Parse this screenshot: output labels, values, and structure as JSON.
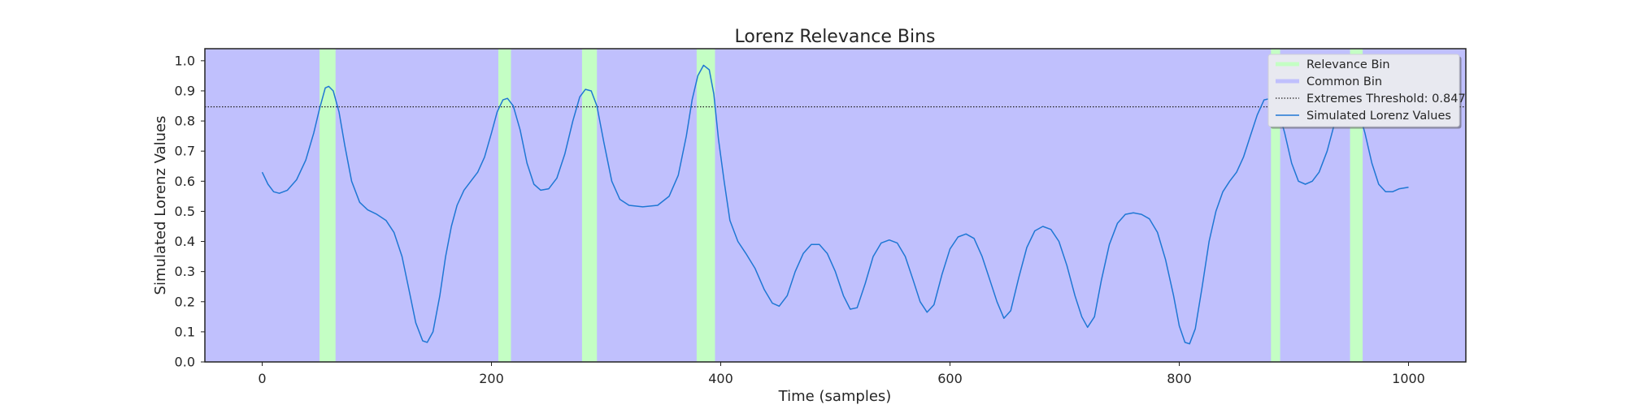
{
  "chart_data": {
    "type": "line",
    "title": "Lorenz Relevance Bins",
    "xlabel": "Time (samples)",
    "ylabel": "Simulated Lorenz Values",
    "xlim": [
      -50,
      1050
    ],
    "ylim": [
      0.0,
      1.04
    ],
    "x_ticks": [
      0,
      200,
      400,
      600,
      800,
      1000
    ],
    "y_ticks": [
      0.0,
      0.1,
      0.2,
      0.3,
      0.4,
      0.5,
      0.6,
      0.7,
      0.8,
      0.9,
      1.0
    ],
    "grid": false,
    "legend_position": "top-right",
    "colors": {
      "common_bin": "#c0c0fd",
      "relevance_bin": "#c4fec4",
      "line": "#1f77d4",
      "threshold": "#222222",
      "frame": "#222222",
      "legend_bg": "#e8e9f0"
    },
    "threshold": 0.847,
    "relevance_bins": [
      [
        50,
        64
      ],
      [
        206,
        217
      ],
      [
        279,
        292
      ],
      [
        379,
        395
      ],
      [
        880,
        888
      ],
      [
        949,
        960
      ]
    ],
    "legend": [
      {
        "label": "Relevance Bin",
        "kind": "relevance-bin"
      },
      {
        "label": "Common Bin",
        "kind": "common-bin"
      },
      {
        "label": "Extremes Threshold: 0.847",
        "kind": "threshold"
      },
      {
        "label": "Simulated Lorenz Values",
        "kind": "line"
      }
    ],
    "series": [
      {
        "name": "Simulated Lorenz Values",
        "points": [
          [
            0,
            0.63
          ],
          [
            5,
            0.59
          ],
          [
            10,
            0.565
          ],
          [
            15,
            0.56
          ],
          [
            22,
            0.57
          ],
          [
            30,
            0.605
          ],
          [
            38,
            0.67
          ],
          [
            45,
            0.76
          ],
          [
            50,
            0.84
          ],
          [
            55,
            0.91
          ],
          [
            58,
            0.915
          ],
          [
            62,
            0.9
          ],
          [
            67,
            0.83
          ],
          [
            72,
            0.72
          ],
          [
            78,
            0.6
          ],
          [
            85,
            0.53
          ],
          [
            92,
            0.505
          ],
          [
            100,
            0.49
          ],
          [
            108,
            0.47
          ],
          [
            115,
            0.43
          ],
          [
            122,
            0.35
          ],
          [
            128,
            0.24
          ],
          [
            134,
            0.13
          ],
          [
            140,
            0.07
          ],
          [
            144,
            0.065
          ],
          [
            149,
            0.1
          ],
          [
            155,
            0.22
          ],
          [
            160,
            0.35
          ],
          [
            165,
            0.45
          ],
          [
            170,
            0.52
          ],
          [
            176,
            0.57
          ],
          [
            182,
            0.6
          ],
          [
            188,
            0.63
          ],
          [
            194,
            0.68
          ],
          [
            200,
            0.76
          ],
          [
            205,
            0.83
          ],
          [
            210,
            0.87
          ],
          [
            214,
            0.875
          ],
          [
            219,
            0.85
          ],
          [
            225,
            0.77
          ],
          [
            231,
            0.66
          ],
          [
            237,
            0.59
          ],
          [
            243,
            0.57
          ],
          [
            250,
            0.575
          ],
          [
            257,
            0.61
          ],
          [
            264,
            0.69
          ],
          [
            271,
            0.8
          ],
          [
            277,
            0.88
          ],
          [
            282,
            0.905
          ],
          [
            287,
            0.9
          ],
          [
            292,
            0.85
          ],
          [
            298,
            0.73
          ],
          [
            305,
            0.6
          ],
          [
            312,
            0.54
          ],
          [
            320,
            0.52
          ],
          [
            332,
            0.515
          ],
          [
            345,
            0.52
          ],
          [
            355,
            0.55
          ],
          [
            363,
            0.62
          ],
          [
            370,
            0.75
          ],
          [
            375,
            0.87
          ],
          [
            380,
            0.95
          ],
          [
            385,
            0.985
          ],
          [
            390,
            0.97
          ],
          [
            394,
            0.89
          ],
          [
            398,
            0.74
          ],
          [
            403,
            0.6
          ],
          [
            408,
            0.47
          ],
          [
            415,
            0.4
          ],
          [
            422,
            0.36
          ],
          [
            430,
            0.31
          ],
          [
            438,
            0.24
          ],
          [
            445,
            0.195
          ],
          [
            451,
            0.185
          ],
          [
            458,
            0.22
          ],
          [
            465,
            0.3
          ],
          [
            472,
            0.36
          ],
          [
            479,
            0.39
          ],
          [
            486,
            0.39
          ],
          [
            493,
            0.36
          ],
          [
            500,
            0.3
          ],
          [
            507,
            0.22
          ],
          [
            513,
            0.175
          ],
          [
            519,
            0.18
          ],
          [
            526,
            0.26
          ],
          [
            533,
            0.35
          ],
          [
            540,
            0.395
          ],
          [
            547,
            0.405
          ],
          [
            554,
            0.395
          ],
          [
            561,
            0.35
          ],
          [
            568,
            0.27
          ],
          [
            574,
            0.2
          ],
          [
            580,
            0.165
          ],
          [
            586,
            0.19
          ],
          [
            593,
            0.29
          ],
          [
            600,
            0.375
          ],
          [
            607,
            0.415
          ],
          [
            614,
            0.425
          ],
          [
            621,
            0.41
          ],
          [
            628,
            0.35
          ],
          [
            635,
            0.27
          ],
          [
            641,
            0.2
          ],
          [
            647,
            0.145
          ],
          [
            653,
            0.17
          ],
          [
            660,
            0.28
          ],
          [
            667,
            0.38
          ],
          [
            674,
            0.435
          ],
          [
            681,
            0.45
          ],
          [
            688,
            0.44
          ],
          [
            695,
            0.4
          ],
          [
            702,
            0.32
          ],
          [
            709,
            0.22
          ],
          [
            715,
            0.15
          ],
          [
            720,
            0.115
          ],
          [
            726,
            0.15
          ],
          [
            732,
            0.27
          ],
          [
            739,
            0.39
          ],
          [
            746,
            0.46
          ],
          [
            753,
            0.49
          ],
          [
            760,
            0.495
          ],
          [
            767,
            0.49
          ],
          [
            774,
            0.475
          ],
          [
            781,
            0.43
          ],
          [
            788,
            0.34
          ],
          [
            795,
            0.22
          ],
          [
            800,
            0.12
          ],
          [
            805,
            0.065
          ],
          [
            809,
            0.06
          ],
          [
            814,
            0.11
          ],
          [
            820,
            0.25
          ],
          [
            826,
            0.4
          ],
          [
            832,
            0.5
          ],
          [
            838,
            0.565
          ],
          [
            844,
            0.6
          ],
          [
            850,
            0.63
          ],
          [
            856,
            0.68
          ],
          [
            862,
            0.75
          ],
          [
            868,
            0.82
          ],
          [
            874,
            0.87
          ],
          [
            880,
            0.875
          ],
          [
            886,
            0.84
          ],
          [
            892,
            0.76
          ],
          [
            898,
            0.66
          ],
          [
            904,
            0.6
          ],
          [
            910,
            0.59
          ],
          [
            916,
            0.6
          ],
          [
            922,
            0.63
          ],
          [
            929,
            0.7
          ],
          [
            936,
            0.8
          ],
          [
            943,
            0.865
          ],
          [
            950,
            0.875
          ],
          [
            956,
            0.84
          ],
          [
            962,
            0.76
          ],
          [
            968,
            0.66
          ],
          [
            974,
            0.59
          ],
          [
            980,
            0.565
          ],
          [
            986,
            0.565
          ],
          [
            992,
            0.575
          ],
          [
            1000,
            0.58
          ]
        ]
      }
    ]
  }
}
